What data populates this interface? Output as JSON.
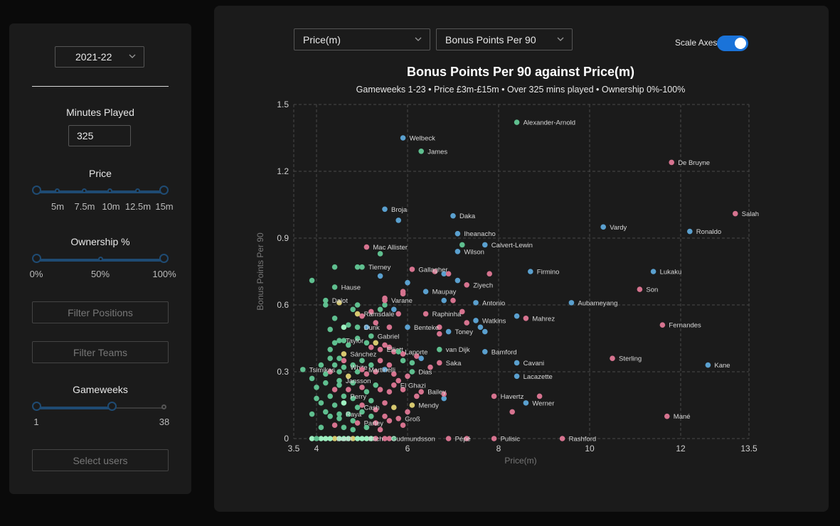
{
  "sidebar": {
    "season": "2021-22",
    "minutes_label": "Minutes Played",
    "minutes_value": "325",
    "price_label": "Price",
    "price_marks": [
      "5m",
      "7.5m",
      "10m",
      "12.5m",
      "15m"
    ],
    "ownership_label": "Ownership %",
    "ownership_marks": [
      "0%",
      "50%",
      "100%"
    ],
    "filter_positions": "Filter Positions",
    "filter_teams": "Filter Teams",
    "gameweeks_label": "Gameweeks",
    "gameweeks_min": "1",
    "gameweeks_max": "38",
    "gameweeks_value": [
      1,
      23
    ],
    "select_users": "Select users"
  },
  "controls": {
    "x_select": "Price(m)",
    "y_select": "Bonus Points Per 90",
    "scale_label": "Scale Axes",
    "scale_on": true
  },
  "colors": {
    "blue": "#5aa0cf",
    "pink": "#d6738f",
    "green": "#5fbf8f",
    "yellow": "#d6c86f",
    "light": "#9ef0c0"
  },
  "chart_data": {
    "type": "scatter",
    "title": "Bonus Points Per 90 against Price(m)",
    "subtitle": "Gameweeks 1-23 • Price £3m-£15m • Over 325 mins played • Ownership 0%-100%",
    "xlabel": "Price(m)",
    "ylabel": "Bonus Points Per 90",
    "xlim": [
      3.5,
      13.5
    ],
    "ylim": [
      0,
      1.5
    ],
    "xticks": [
      "3.5",
      "4",
      "6",
      "8",
      "10",
      "12",
      "13.5"
    ],
    "xtick_values": [
      3.5,
      4,
      6,
      8,
      10,
      12,
      13.5
    ],
    "yticks": [
      "0",
      "0.3",
      "0.6",
      "0.9",
      "1.2",
      "1.5"
    ],
    "ytick_values": [
      0,
      0.3,
      0.6,
      0.9,
      1.2,
      1.5
    ],
    "grid": true,
    "labeled_points": [
      {
        "label": "Alexander-Arnold",
        "x": 8.4,
        "y": 1.42,
        "c": "green"
      },
      {
        "label": "Welbeck",
        "x": 5.9,
        "y": 1.35,
        "c": "blue"
      },
      {
        "label": "James",
        "x": 6.3,
        "y": 1.29,
        "c": "green"
      },
      {
        "label": "De Bruyne",
        "x": 11.8,
        "y": 1.24,
        "c": "pink"
      },
      {
        "label": "Broja",
        "x": 5.5,
        "y": 1.03,
        "c": "blue"
      },
      {
        "label": "Salah",
        "x": 13.2,
        "y": 1.01,
        "c": "pink"
      },
      {
        "label": "Daka",
        "x": 7.0,
        "y": 1.0,
        "c": "blue"
      },
      {
        "label": "Vardy",
        "x": 10.3,
        "y": 0.95,
        "c": "blue"
      },
      {
        "label": "Iheanacho",
        "x": 7.1,
        "y": 0.92,
        "c": "blue"
      },
      {
        "label": "Ronaldo",
        "x": 12.2,
        "y": 0.93,
        "c": "blue"
      },
      {
        "label": "Calvert-Lewin",
        "x": 7.7,
        "y": 0.87,
        "c": "blue"
      },
      {
        "label": "Mac Allister",
        "x": 5.1,
        "y": 0.86,
        "c": "pink"
      },
      {
        "label": "Wilson",
        "x": 7.1,
        "y": 0.84,
        "c": "blue"
      },
      {
        "label": "Tierney",
        "x": 5.0,
        "y": 0.77,
        "c": "green"
      },
      {
        "label": "Gallagher",
        "x": 6.1,
        "y": 0.76,
        "c": "pink"
      },
      {
        "label": "Firmino",
        "x": 8.7,
        "y": 0.75,
        "c": "blue"
      },
      {
        "label": "Lukaku",
        "x": 11.4,
        "y": 0.75,
        "c": "blue"
      },
      {
        "label": "Ziyech",
        "x": 7.3,
        "y": 0.69,
        "c": "pink"
      },
      {
        "label": "Hause",
        "x": 4.4,
        "y": 0.68,
        "c": "green"
      },
      {
        "label": "Maupay",
        "x": 6.4,
        "y": 0.66,
        "c": "blue"
      },
      {
        "label": "Son",
        "x": 11.1,
        "y": 0.67,
        "c": "pink"
      },
      {
        "label": "Dalot",
        "x": 4.2,
        "y": 0.62,
        "c": "green"
      },
      {
        "label": "Varane",
        "x": 5.5,
        "y": 0.62,
        "c": "pink"
      },
      {
        "label": "Antonio",
        "x": 7.5,
        "y": 0.61,
        "c": "blue"
      },
      {
        "label": "Aubameyang",
        "x": 9.6,
        "y": 0.61,
        "c": "blue"
      },
      {
        "label": "Ramsdale",
        "x": 4.9,
        "y": 0.56,
        "c": "yellow"
      },
      {
        "label": "Raphinha",
        "x": 6.4,
        "y": 0.56,
        "c": "pink"
      },
      {
        "label": "Watkins",
        "x": 7.5,
        "y": 0.53,
        "c": "blue"
      },
      {
        "label": "Mahrez",
        "x": 8.6,
        "y": 0.54,
        "c": "pink"
      },
      {
        "label": "Dunk",
        "x": 4.9,
        "y": 0.5,
        "c": "green"
      },
      {
        "label": "Benteke",
        "x": 6.0,
        "y": 0.5,
        "c": "blue"
      },
      {
        "label": "Fernandes",
        "x": 11.6,
        "y": 0.51,
        "c": "pink"
      },
      {
        "label": "Toney",
        "x": 6.9,
        "y": 0.48,
        "c": "blue"
      },
      {
        "label": "Gabriel",
        "x": 5.2,
        "y": 0.46,
        "c": "green"
      },
      {
        "label": "Taylor",
        "x": 4.5,
        "y": 0.44,
        "c": "green"
      },
      {
        "label": "Elliott",
        "x": 5.4,
        "y": 0.4,
        "c": "pink"
      },
      {
        "label": "Laporte",
        "x": 5.8,
        "y": 0.39,
        "c": "green"
      },
      {
        "label": "van Dijk",
        "x": 6.7,
        "y": 0.4,
        "c": "green"
      },
      {
        "label": "Bamford",
        "x": 7.7,
        "y": 0.39,
        "c": "blue"
      },
      {
        "label": "Sánchez",
        "x": 4.6,
        "y": 0.38,
        "c": "yellow"
      },
      {
        "label": "Sterling",
        "x": 10.5,
        "y": 0.36,
        "c": "pink"
      },
      {
        "label": "Saka",
        "x": 6.7,
        "y": 0.34,
        "c": "pink"
      },
      {
        "label": "Cavani",
        "x": 8.4,
        "y": 0.34,
        "c": "blue"
      },
      {
        "label": "Kane",
        "x": 12.6,
        "y": 0.33,
        "c": "blue"
      },
      {
        "label": "White",
        "x": 4.6,
        "y": 0.32,
        "c": "green"
      },
      {
        "label": "Tsimikas",
        "x": 3.7,
        "y": 0.31,
        "c": "green"
      },
      {
        "label": "Martinelli",
        "x": 5.0,
        "y": 0.31,
        "c": "pink"
      },
      {
        "label": "Dias",
        "x": 6.1,
        "y": 0.3,
        "c": "green"
      },
      {
        "label": "Lacazette",
        "x": 8.4,
        "y": 0.28,
        "c": "blue"
      },
      {
        "label": "Jansson",
        "x": 4.5,
        "y": 0.26,
        "c": "green"
      },
      {
        "label": "El Ghazi",
        "x": 5.7,
        "y": 0.24,
        "c": "pink"
      },
      {
        "label": "Bailey",
        "x": 6.3,
        "y": 0.21,
        "c": "pink"
      },
      {
        "label": "Havertz",
        "x": 7.9,
        "y": 0.19,
        "c": "pink"
      },
      {
        "label": "Perry",
        "x": 4.6,
        "y": 0.19,
        "c": "green"
      },
      {
        "label": "Werner",
        "x": 8.6,
        "y": 0.16,
        "c": "blue"
      },
      {
        "label": "Mendy",
        "x": 6.1,
        "y": 0.15,
        "c": "yellow"
      },
      {
        "label": "Cash",
        "x": 4.9,
        "y": 0.14,
        "c": "green"
      },
      {
        "label": "Raya",
        "x": 4.5,
        "y": 0.11,
        "c": "green"
      },
      {
        "label": "Mané",
        "x": 11.7,
        "y": 0.1,
        "c": "pink"
      },
      {
        "label": "Groß",
        "x": 5.8,
        "y": 0.09,
        "c": "pink"
      },
      {
        "label": "Partey",
        "x": 4.9,
        "y": 0.07,
        "c": "pink"
      },
      {
        "label": "Gudmundsson",
        "x": 5.5,
        "y": 0.0,
        "c": "pink"
      },
      {
        "label": "Pépé",
        "x": 6.9,
        "y": 0.0,
        "c": "pink"
      },
      {
        "label": "Pulisic",
        "x": 7.9,
        "y": 0.0,
        "c": "pink"
      },
      {
        "label": "Rashford",
        "x": 9.4,
        "y": 0.0,
        "c": "pink"
      },
      {
        "label": "Batth",
        "x": 4.3,
        "y": 0.0,
        "c": "light"
      },
      {
        "label": "Klich",
        "x": 5.0,
        "y": 0.0,
        "c": "light"
      }
    ],
    "unlabeled_points": [
      [
        3.9,
        0.71,
        "green"
      ],
      [
        4.4,
        0.77,
        "green"
      ],
      [
        4.9,
        0.77,
        "green"
      ],
      [
        5.4,
        0.73,
        "blue"
      ],
      [
        5.4,
        0.83,
        "green"
      ],
      [
        5.8,
        0.98,
        "blue"
      ],
      [
        6.0,
        0.7,
        "blue"
      ],
      [
        5.9,
        0.66,
        "pink"
      ],
      [
        5.9,
        0.65,
        "pink"
      ],
      [
        6.6,
        0.75,
        "pink"
      ],
      [
        6.8,
        0.74,
        "blue"
      ],
      [
        6.9,
        0.74,
        "pink"
      ],
      [
        7.1,
        0.71,
        "blue"
      ],
      [
        7.8,
        0.74,
        "pink"
      ],
      [
        7.2,
        0.87,
        "green"
      ],
      [
        7.0,
        0.62,
        "pink"
      ],
      [
        6.8,
        0.62,
        "blue"
      ],
      [
        7.2,
        0.57,
        "pink"
      ],
      [
        7.6,
        0.5,
        "blue"
      ],
      [
        7.7,
        0.48,
        "blue"
      ],
      [
        7.3,
        0.52,
        "pink"
      ],
      [
        8.4,
        0.55,
        "blue"
      ],
      [
        6.7,
        0.5,
        "pink"
      ],
      [
        6.7,
        0.47,
        "pink"
      ],
      [
        4.2,
        0.6,
        "green"
      ],
      [
        4.5,
        0.61,
        "yellow"
      ],
      [
        4.4,
        0.54,
        "green"
      ],
      [
        4.8,
        0.58,
        "green"
      ],
      [
        4.9,
        0.6,
        "green"
      ],
      [
        5.0,
        0.55,
        "pink"
      ],
      [
        5.2,
        0.57,
        "pink"
      ],
      [
        5.4,
        0.58,
        "green"
      ],
      [
        5.5,
        0.63,
        "pink"
      ],
      [
        5.5,
        0.6,
        "green"
      ],
      [
        5.7,
        0.58,
        "blue"
      ],
      [
        5.8,
        0.56,
        "pink"
      ],
      [
        4.3,
        0.49,
        "green"
      ],
      [
        4.6,
        0.5,
        "light"
      ],
      [
        4.7,
        0.51,
        "green"
      ],
      [
        5.1,
        0.5,
        "blue"
      ],
      [
        5.3,
        0.52,
        "pink"
      ],
      [
        5.6,
        0.5,
        "pink"
      ],
      [
        4.3,
        0.4,
        "green"
      ],
      [
        4.4,
        0.43,
        "green"
      ],
      [
        4.6,
        0.44,
        "green"
      ],
      [
        4.7,
        0.42,
        "green"
      ],
      [
        4.9,
        0.45,
        "green"
      ],
      [
        5.1,
        0.43,
        "green"
      ],
      [
        5.2,
        0.41,
        "pink"
      ],
      [
        5.3,
        0.43,
        "yellow"
      ],
      [
        5.5,
        0.42,
        "pink"
      ],
      [
        5.6,
        0.41,
        "pink"
      ],
      [
        5.7,
        0.39,
        "pink"
      ],
      [
        5.9,
        0.38,
        "pink"
      ],
      [
        6.2,
        0.37,
        "pink"
      ],
      [
        6.5,
        0.32,
        "pink"
      ],
      [
        6.3,
        0.36,
        "blue"
      ],
      [
        6.1,
        0.34,
        "green"
      ],
      [
        5.9,
        0.35,
        "green"
      ],
      [
        5.6,
        0.33,
        "pink"
      ],
      [
        4.1,
        0.33,
        "green"
      ],
      [
        4.2,
        0.29,
        "green"
      ],
      [
        4.3,
        0.36,
        "green"
      ],
      [
        4.4,
        0.33,
        "green"
      ],
      [
        4.5,
        0.3,
        "green"
      ],
      [
        4.6,
        0.35,
        "pink"
      ],
      [
        4.7,
        0.28,
        "yellow"
      ],
      [
        4.8,
        0.33,
        "green"
      ],
      [
        4.9,
        0.3,
        "green"
      ],
      [
        5.0,
        0.35,
        "green"
      ],
      [
        5.1,
        0.29,
        "pink"
      ],
      [
        5.2,
        0.33,
        "green"
      ],
      [
        5.3,
        0.3,
        "pink"
      ],
      [
        5.4,
        0.35,
        "pink"
      ],
      [
        5.5,
        0.31,
        "blue"
      ],
      [
        5.7,
        0.29,
        "pink"
      ],
      [
        5.8,
        0.26,
        "pink"
      ],
      [
        6.0,
        0.28,
        "pink"
      ],
      [
        3.9,
        0.27,
        "green"
      ],
      [
        4.0,
        0.23,
        "green"
      ],
      [
        4.2,
        0.25,
        "green"
      ],
      [
        4.4,
        0.22,
        "pink"
      ],
      [
        4.5,
        0.24,
        "green"
      ],
      [
        4.7,
        0.22,
        "pink"
      ],
      [
        4.8,
        0.25,
        "green"
      ],
      [
        5.0,
        0.23,
        "pink"
      ],
      [
        5.1,
        0.21,
        "green"
      ],
      [
        5.3,
        0.24,
        "green"
      ],
      [
        5.4,
        0.22,
        "pink"
      ],
      [
        5.6,
        0.21,
        "pink"
      ],
      [
        5.9,
        0.22,
        "pink"
      ],
      [
        6.2,
        0.19,
        "pink"
      ],
      [
        6.8,
        0.18,
        "blue"
      ],
      [
        6.8,
        0.2,
        "pink"
      ],
      [
        8.9,
        0.19,
        "pink"
      ],
      [
        8.3,
        0.12,
        "pink"
      ],
      [
        4.0,
        0.18,
        "green"
      ],
      [
        4.1,
        0.16,
        "green"
      ],
      [
        4.3,
        0.19,
        "green"
      ],
      [
        4.4,
        0.15,
        "green"
      ],
      [
        4.6,
        0.16,
        "light"
      ],
      [
        4.8,
        0.18,
        "green"
      ],
      [
        5.0,
        0.15,
        "pink"
      ],
      [
        5.2,
        0.17,
        "green"
      ],
      [
        5.3,
        0.13,
        "pink"
      ],
      [
        5.5,
        0.16,
        "pink"
      ],
      [
        5.7,
        0.14,
        "yellow"
      ],
      [
        6.0,
        0.12,
        "pink"
      ],
      [
        3.9,
        0.11,
        "green"
      ],
      [
        4.2,
        0.12,
        "green"
      ],
      [
        4.3,
        0.1,
        "green"
      ],
      [
        4.5,
        0.09,
        "green"
      ],
      [
        4.7,
        0.11,
        "green"
      ],
      [
        4.8,
        0.08,
        "green"
      ],
      [
        5.0,
        0.12,
        "green"
      ],
      [
        5.2,
        0.1,
        "green"
      ],
      [
        5.3,
        0.07,
        "pink"
      ],
      [
        5.5,
        0.1,
        "pink"
      ],
      [
        5.6,
        0.08,
        "pink"
      ],
      [
        5.9,
        0.06,
        "pink"
      ],
      [
        4.1,
        0.05,
        "green"
      ],
      [
        4.4,
        0.06,
        "pink"
      ],
      [
        4.6,
        0.05,
        "green"
      ],
      [
        4.8,
        0.04,
        "green"
      ],
      [
        5.1,
        0.05,
        "green"
      ],
      [
        5.4,
        0.04,
        "pink"
      ],
      [
        3.9,
        0.0,
        "light"
      ],
      [
        4.1,
        0.0,
        "light"
      ],
      [
        4.2,
        0.0,
        "light"
      ],
      [
        4.4,
        0.0,
        "yellow"
      ],
      [
        4.5,
        0.0,
        "light"
      ],
      [
        4.6,
        0.0,
        "light"
      ],
      [
        4.7,
        0.0,
        "light"
      ],
      [
        4.8,
        0.0,
        "yellow"
      ],
      [
        4.9,
        0.0,
        "light"
      ],
      [
        5.1,
        0.0,
        "light"
      ],
      [
        5.2,
        0.0,
        "light"
      ],
      [
        5.3,
        0.0,
        "pink"
      ],
      [
        5.6,
        0.0,
        "pink"
      ],
      [
        5.7,
        0.0,
        "green"
      ],
      [
        7.3,
        0.0,
        "pink"
      ],
      [
        4.0,
        0.0,
        "green"
      ],
      [
        4.3,
        0.3,
        "pink"
      ],
      [
        4.5,
        0.36,
        "green"
      ]
    ]
  }
}
